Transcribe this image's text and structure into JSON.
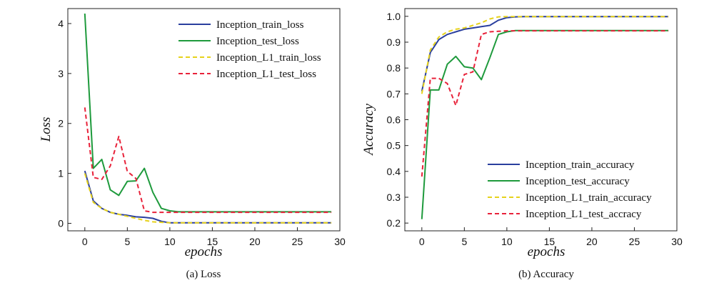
{
  "chart_data": [
    {
      "type": "line",
      "title": "",
      "caption": "(a)  Loss",
      "xlabel": "epochs",
      "ylabel": "Loss",
      "xlim": [
        -2,
        30
      ],
      "ylim": [
        -0.15,
        4.3
      ],
      "xticks": [
        "0",
        "5",
        "10",
        "15",
        "20",
        "25",
        "30"
      ],
      "yticks": [
        "0",
        "1",
        "2",
        "3",
        "4"
      ],
      "grid": false,
      "legend_position": "top-right",
      "x": [
        0,
        1,
        2,
        3,
        4,
        5,
        6,
        7,
        8,
        9,
        10,
        11,
        12,
        13,
        14,
        15,
        16,
        17,
        18,
        19,
        20,
        21,
        22,
        23,
        24,
        25,
        26,
        27,
        28,
        29
      ],
      "series": [
        {
          "name": "Inception_train_loss",
          "color": "#2a3f9e",
          "dash": "solid",
          "values": [
            1.05,
            0.45,
            0.3,
            0.22,
            0.18,
            0.16,
            0.13,
            0.12,
            0.1,
            0.04,
            0.01,
            0.01,
            0.01,
            0.01,
            0.01,
            0.01,
            0.01,
            0.01,
            0.01,
            0.01,
            0.01,
            0.01,
            0.01,
            0.01,
            0.01,
            0.01,
            0.01,
            0.01,
            0.01,
            0.01
          ]
        },
        {
          "name": "Inception_test_loss",
          "color": "#1e9a3c",
          "dash": "solid",
          "values": [
            4.2,
            1.1,
            1.28,
            0.67,
            0.56,
            0.84,
            0.85,
            1.1,
            0.62,
            0.3,
            0.25,
            0.23,
            0.23,
            0.23,
            0.23,
            0.23,
            0.23,
            0.23,
            0.23,
            0.23,
            0.23,
            0.23,
            0.23,
            0.23,
            0.23,
            0.23,
            0.23,
            0.23,
            0.23,
            0.23
          ]
        },
        {
          "name": "Inception_L1_train_loss",
          "color": "#e6d21c",
          "dash": "dashed",
          "values": [
            1.0,
            0.42,
            0.3,
            0.22,
            0.18,
            0.14,
            0.1,
            0.06,
            0.03,
            0.02,
            0.01,
            0.01,
            0.01,
            0.01,
            0.01,
            0.01,
            0.01,
            0.01,
            0.01,
            0.01,
            0.01,
            0.01,
            0.01,
            0.01,
            0.01,
            0.01,
            0.01,
            0.01,
            0.01,
            0.01
          ]
        },
        {
          "name": "Inception_L1_test_loss",
          "color": "#e8223a",
          "dash": "dashed",
          "values": [
            2.32,
            0.92,
            0.88,
            1.15,
            1.74,
            1.04,
            0.9,
            0.25,
            0.22,
            0.22,
            0.22,
            0.22,
            0.22,
            0.22,
            0.22,
            0.22,
            0.22,
            0.22,
            0.22,
            0.22,
            0.22,
            0.22,
            0.22,
            0.22,
            0.22,
            0.22,
            0.22,
            0.22,
            0.22,
            0.22
          ]
        }
      ]
    },
    {
      "type": "line",
      "title": "",
      "caption": "(b)  Accuracy",
      "xlabel": "epochs",
      "ylabel": "Accuracy",
      "xlim": [
        -2,
        30
      ],
      "ylim": [
        0.17,
        1.03
      ],
      "xticks": [
        "0",
        "5",
        "10",
        "15",
        "20",
        "25",
        "30"
      ],
      "yticks": [
        "0.2",
        "0.3",
        "0.4",
        "0.5",
        "0.6",
        "0.7",
        "0.8",
        "0.9",
        "1.0"
      ],
      "grid": false,
      "legend_position": "bottom-right",
      "x": [
        0,
        1,
        2,
        3,
        4,
        5,
        6,
        7,
        8,
        9,
        10,
        11,
        12,
        13,
        14,
        15,
        16,
        17,
        18,
        19,
        20,
        21,
        22,
        23,
        24,
        25,
        26,
        27,
        28,
        29
      ],
      "series": [
        {
          "name": "Inception_train_accuracy",
          "color": "#2a3f9e",
          "dash": "solid",
          "values": [
            0.71,
            0.86,
            0.91,
            0.93,
            0.94,
            0.95,
            0.955,
            0.96,
            0.965,
            0.985,
            0.995,
            0.998,
            0.999,
            0.999,
            0.999,
            0.999,
            0.999,
            0.999,
            0.999,
            0.999,
            0.999,
            0.999,
            0.999,
            0.999,
            0.999,
            0.999,
            0.999,
            0.999,
            0.999,
            0.999
          ]
        },
        {
          "name": "Inception_test_accuracy",
          "color": "#1e9a3c",
          "dash": "solid",
          "values": [
            0.215,
            0.715,
            0.715,
            0.815,
            0.845,
            0.805,
            0.8,
            0.755,
            0.84,
            0.93,
            0.94,
            0.945,
            0.945,
            0.945,
            0.945,
            0.945,
            0.945,
            0.945,
            0.945,
            0.945,
            0.945,
            0.945,
            0.945,
            0.945,
            0.945,
            0.945,
            0.945,
            0.945,
            0.945,
            0.945
          ]
        },
        {
          "name": "Inception_L1_train_accuracy",
          "color": "#e6d21c",
          "dash": "dashed",
          "values": [
            0.7,
            0.87,
            0.92,
            0.94,
            0.95,
            0.955,
            0.965,
            0.975,
            0.99,
            0.998,
            0.999,
            0.999,
            0.999,
            0.999,
            0.999,
            0.999,
            0.999,
            0.999,
            0.999,
            0.999,
            0.999,
            0.999,
            0.999,
            0.999,
            0.999,
            0.999,
            0.999,
            0.999,
            0.999,
            0.999
          ]
        },
        {
          "name": "Inception_L1_test_accracy",
          "color": "#e8223a",
          "dash": "dashed",
          "values": [
            0.38,
            0.76,
            0.76,
            0.74,
            0.655,
            0.775,
            0.785,
            0.93,
            0.94,
            0.942,
            0.944,
            0.944,
            0.944,
            0.944,
            0.944,
            0.944,
            0.944,
            0.944,
            0.944,
            0.944,
            0.944,
            0.944,
            0.944,
            0.944,
            0.944,
            0.944,
            0.944,
            0.944,
            0.944,
            0.944
          ]
        }
      ]
    }
  ]
}
